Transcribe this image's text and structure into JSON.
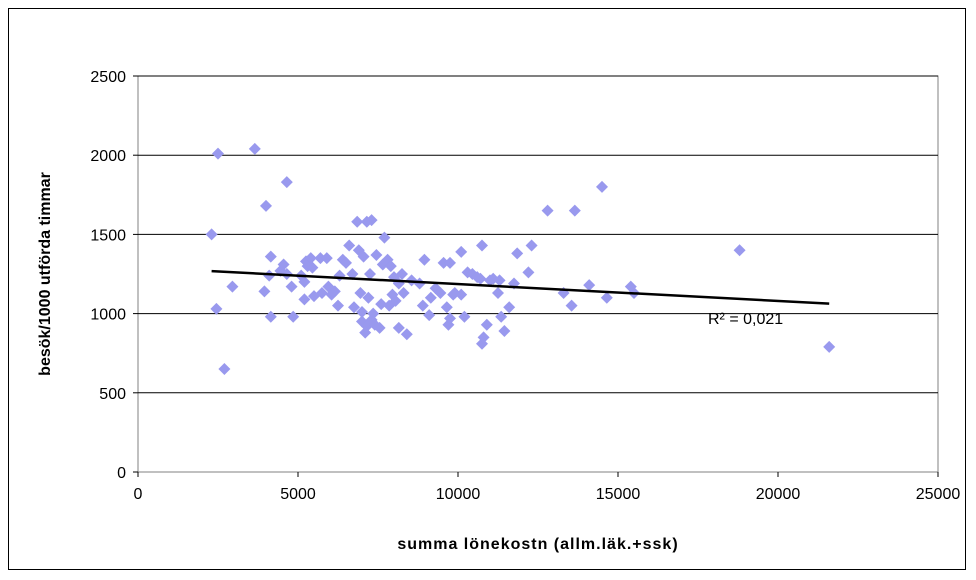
{
  "chart_data": {
    "type": "scatter",
    "title": "",
    "xlabel": "summa lönekostn (allm.läk.+ssk)",
    "ylabel": "besök/1000 utförda timmar",
    "xlim": [
      0,
      25000
    ],
    "ylim": [
      0,
      2500
    ],
    "x_ticks": [
      "0",
      "5000",
      "10000",
      "15000",
      "20000",
      "25000"
    ],
    "y_ticks": [
      "0",
      "500",
      "1000",
      "1500",
      "2000",
      "2500"
    ],
    "grid": "horizontal",
    "legend": "none",
    "marker": "diamond",
    "point_color": "#9999ee",
    "trendline_color": "#000000",
    "trendline": {
      "type": "linear",
      "x": [
        2300,
        21600
      ],
      "y": [
        1268,
        1063
      ]
    },
    "r2_label": "R² = 0,021",
    "points": [
      [
        2300,
        1500
      ],
      [
        2500,
        2010
      ],
      [
        2450,
        1030
      ],
      [
        2700,
        650
      ],
      [
        2950,
        1170
      ],
      [
        3650,
        2040
      ],
      [
        4000,
        1680
      ],
      [
        3950,
        1140
      ],
      [
        4100,
        1240
      ],
      [
        4150,
        1360
      ],
      [
        4150,
        980
      ],
      [
        4450,
        1270
      ],
      [
        4550,
        1310
      ],
      [
        4650,
        1830
      ],
      [
        4650,
        1250
      ],
      [
        4800,
        1170
      ],
      [
        4850,
        980
      ],
      [
        5100,
        1240
      ],
      [
        5200,
        1090
      ],
      [
        5200,
        1200
      ],
      [
        5250,
        1330
      ],
      [
        5300,
        1300
      ],
      [
        5400,
        1350
      ],
      [
        5450,
        1290
      ],
      [
        5500,
        1110
      ],
      [
        5700,
        1350
      ],
      [
        5750,
        1130
      ],
      [
        5900,
        1350
      ],
      [
        5950,
        1170
      ],
      [
        6050,
        1120
      ],
      [
        6150,
        1140
      ],
      [
        6250,
        1050
      ],
      [
        6300,
        1240
      ],
      [
        6400,
        1340
      ],
      [
        6500,
        1320
      ],
      [
        6600,
        1430
      ],
      [
        6700,
        1250
      ],
      [
        6750,
        1040
      ],
      [
        6850,
        1580
      ],
      [
        6900,
        1400
      ],
      [
        6950,
        1130
      ],
      [
        7000,
        1010
      ],
      [
        7050,
        1360
      ],
      [
        7000,
        950
      ],
      [
        7100,
        880
      ],
      [
        7150,
        920
      ],
      [
        7150,
        1580
      ],
      [
        7200,
        1100
      ],
      [
        7250,
        1250
      ],
      [
        7300,
        1590
      ],
      [
        7300,
        960
      ],
      [
        7350,
        1000
      ],
      [
        7400,
        930
      ],
      [
        7450,
        1370
      ],
      [
        7550,
        910
      ],
      [
        7600,
        1060
      ],
      [
        7650,
        1310
      ],
      [
        7700,
        1480
      ],
      [
        7800,
        1340
      ],
      [
        7850,
        1050
      ],
      [
        7900,
        1300
      ],
      [
        7950,
        1120
      ],
      [
        8000,
        1230
      ],
      [
        8050,
        1080
      ],
      [
        8150,
        1190
      ],
      [
        8150,
        910
      ],
      [
        8250,
        1250
      ],
      [
        8300,
        1130
      ],
      [
        8400,
        870
      ],
      [
        8550,
        1210
      ],
      [
        8800,
        1190
      ],
      [
        8900,
        1050
      ],
      [
        8950,
        1340
      ],
      [
        9100,
        990
      ],
      [
        9150,
        1100
      ],
      [
        9300,
        1160
      ],
      [
        9450,
        1130
      ],
      [
        9550,
        1320
      ],
      [
        9650,
        1040
      ],
      [
        9700,
        930
      ],
      [
        9750,
        1320
      ],
      [
        9750,
        970
      ],
      [
        9850,
        1120
      ],
      [
        9900,
        1130
      ],
      [
        10100,
        1390
      ],
      [
        10100,
        1120
      ],
      [
        10200,
        980
      ],
      [
        10300,
        1260
      ],
      [
        10450,
        1250
      ],
      [
        10600,
        1230
      ],
      [
        10700,
        1220
      ],
      [
        10750,
        1430
      ],
      [
        10750,
        810
      ],
      [
        10800,
        850
      ],
      [
        10900,
        930
      ],
      [
        11000,
        1210
      ],
      [
        11100,
        1220
      ],
      [
        11250,
        1130
      ],
      [
        11300,
        1210
      ],
      [
        11350,
        980
      ],
      [
        11450,
        890
      ],
      [
        11600,
        1040
      ],
      [
        11750,
        1190
      ],
      [
        11850,
        1380
      ],
      [
        12200,
        1260
      ],
      [
        12300,
        1430
      ],
      [
        12800,
        1650
      ],
      [
        13300,
        1130
      ],
      [
        13550,
        1050
      ],
      [
        13650,
        1650
      ],
      [
        14100,
        1180
      ],
      [
        14500,
        1800
      ],
      [
        14650,
        1100
      ],
      [
        15400,
        1170
      ],
      [
        15500,
        1130
      ],
      [
        18800,
        1400
      ],
      [
        21600,
        790
      ]
    ]
  }
}
